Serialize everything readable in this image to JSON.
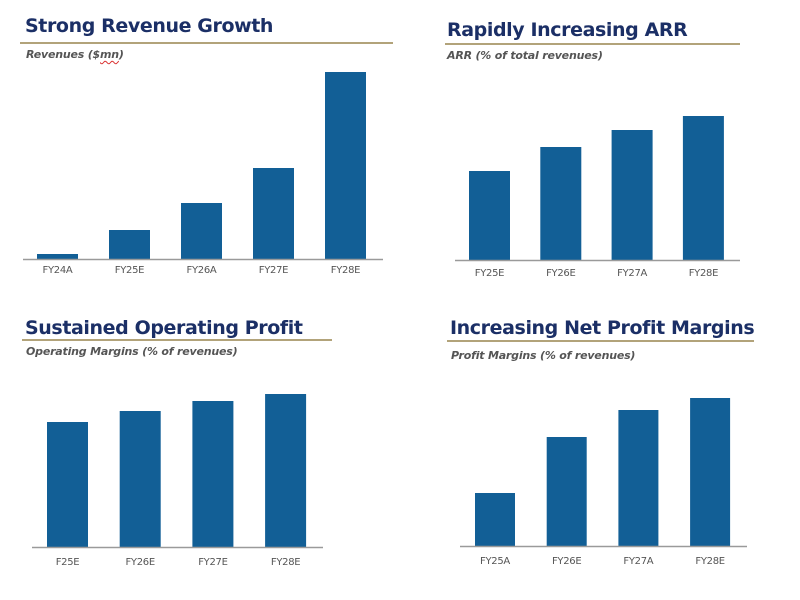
{
  "colors": {
    "bar": "#125f96",
    "title": "#1b2f66",
    "rule": "#b2a37a",
    "axis": "#9a9a9a",
    "subtitle": "#555555"
  },
  "chart_data": [
    {
      "type": "bar",
      "title": "Strong Revenue Growth",
      "subtitle_main": "Revenues ($",
      "subtitle_flag": "mn",
      "subtitle_end": ")",
      "ylabel": "Revenues ($mn)",
      "xlabel": "",
      "categories": [
        "FY24A",
        "FY25E",
        "FY26A",
        "FY27E",
        "FY28E"
      ],
      "values": [
        5,
        29,
        56,
        91,
        187
      ],
      "ylim": [
        0,
        200
      ],
      "grid": false,
      "legend": "none"
    },
    {
      "type": "bar",
      "title": "Rapidly Increasing ARR",
      "subtitle": "ARR (% of total revenues)",
      "ylabel": "ARR (% of total revenues)",
      "xlabel": "",
      "categories": [
        "FY25E",
        "FY26E",
        "FY27A",
        "FY28E"
      ],
      "values": [
        89,
        113,
        130,
        144
      ],
      "ylim": [
        0,
        200
      ],
      "grid": false,
      "legend": "none"
    },
    {
      "type": "bar",
      "title": "Sustained Operating Profit",
      "subtitle": "Operating Margins (% of revenues)",
      "ylabel": "Operating Margins (% of revenues)",
      "xlabel": "",
      "categories": [
        "F25E",
        "FY26E",
        "FY27E",
        "FY28E"
      ],
      "values": [
        125,
        136,
        146,
        153
      ],
      "ylim": [
        0,
        200
      ],
      "grid": false,
      "legend": "none"
    },
    {
      "type": "bar",
      "title": "Increasing Net Profit Margins",
      "subtitle": "Profit Margins (% of revenues)",
      "ylabel": "Profit Margins (% of revenues)",
      "xlabel": "",
      "categories": [
        "FY25A",
        "FY26E",
        "FY27A",
        "FY28E"
      ],
      "values": [
        53,
        109,
        136,
        148
      ],
      "ylim": [
        0,
        200
      ],
      "grid": false,
      "legend": "none"
    }
  ]
}
